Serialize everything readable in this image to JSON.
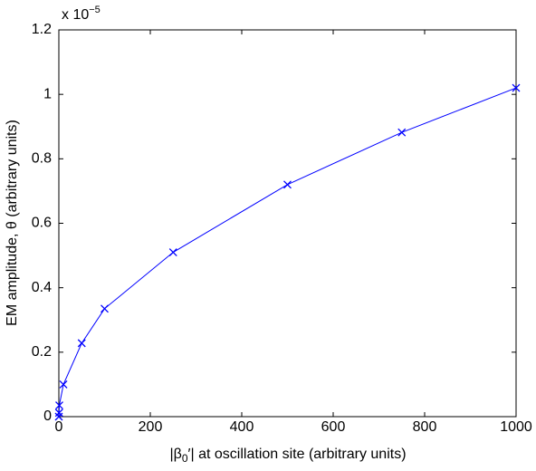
{
  "chart_data": {
    "type": "line",
    "xlabel_parts": [
      "|β",
      "0",
      "′| at oscillation site (arbitrary units)"
    ],
    "ylabel": "EM amplitude, θ (arbitrary units)",
    "y_multiplier": "x 10",
    "y_multiplier_exponent": "−5",
    "x": [
      0,
      0.5,
      1,
      10,
      50,
      100,
      250,
      500,
      750,
      1000
    ],
    "series": [
      {
        "color": "#0000ff",
        "marker": "x",
        "values": [
          0,
          0.012,
          0.035,
          0.1,
          0.228,
          0.335,
          0.51,
          0.72,
          0.882,
          1.02
        ]
      }
    ],
    "xlim": [
      0,
      1000
    ],
    "xticks": [
      0,
      200,
      400,
      600,
      800,
      1000
    ],
    "ylim": [
      0,
      1.2
    ],
    "yticks": [
      0,
      0.2,
      0.4,
      0.6,
      0.8,
      1,
      1.2
    ],
    "grid": false
  }
}
